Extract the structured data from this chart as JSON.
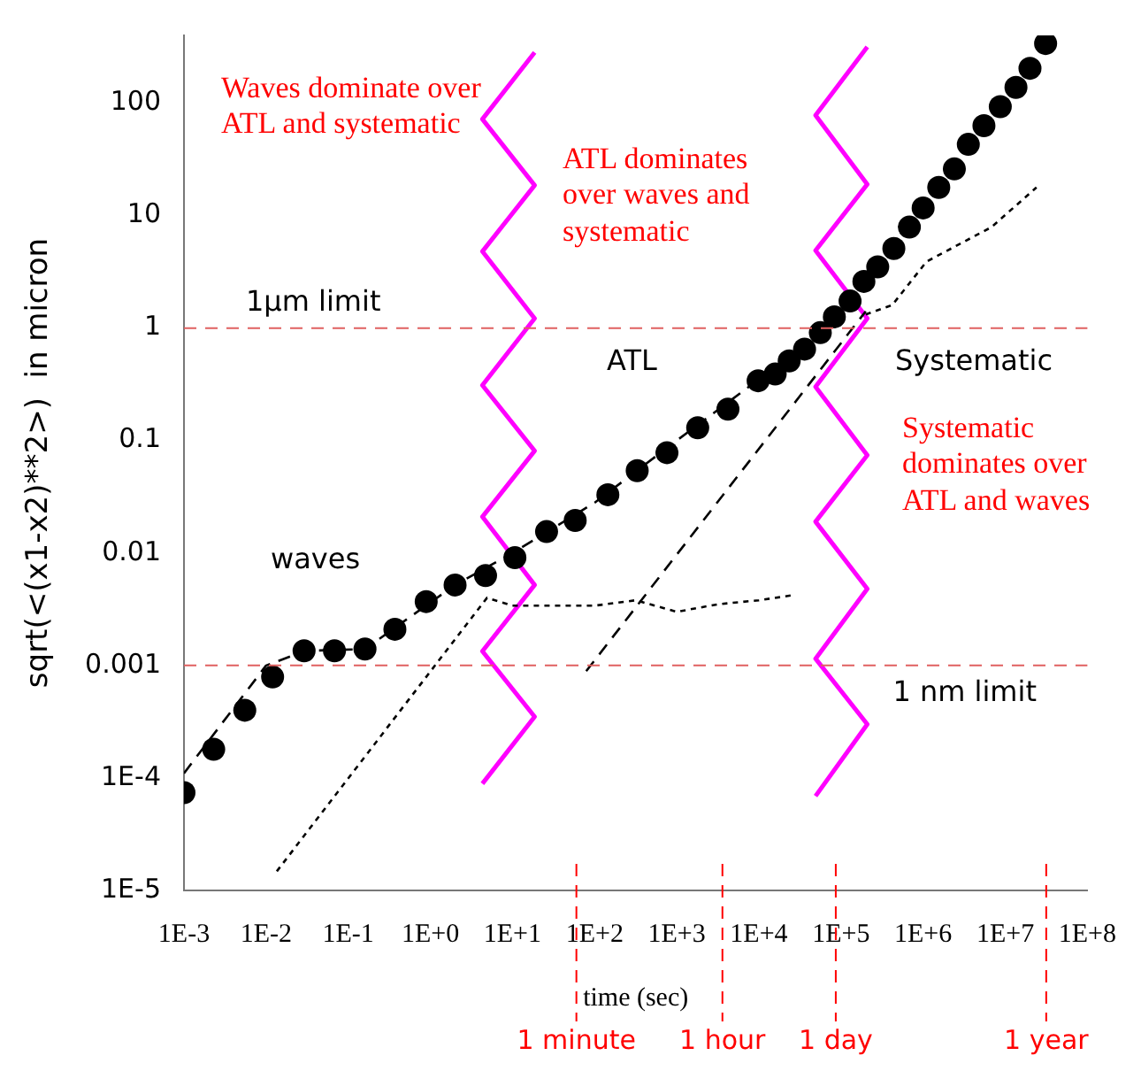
{
  "chart_data": {
    "type": "scatter",
    "xlabel": "time (sec)",
    "ylabel": "sqrt(<(x1-x2)**2>)  in micron",
    "log": "xy",
    "xlim": [
      0.001,
      100000000
    ],
    "ylim": [
      1e-05,
      400
    ],
    "xticks": [
      {
        "value": 0.001,
        "label": "1E-3"
      },
      {
        "value": 0.01,
        "label": "1E-2"
      },
      {
        "value": 0.1,
        "label": "1E-1"
      },
      {
        "value": 1,
        "label": "1E+0"
      },
      {
        "value": 10,
        "label": "1E+1"
      },
      {
        "value": 100,
        "label": "1E+2"
      },
      {
        "value": 1000,
        "label": "1E+3"
      },
      {
        "value": 10000,
        "label": "1E+4"
      },
      {
        "value": 100000,
        "label": "1E+5"
      },
      {
        "value": 1000000,
        "label": "1E+6"
      },
      {
        "value": 10000000,
        "label": "1E+7"
      },
      {
        "value": 100000000,
        "label": "1E+8"
      }
    ],
    "yticks": [
      {
        "value": 1e-05,
        "label": "1E-5"
      },
      {
        "value": 0.0001,
        "label": "1E-4"
      },
      0.001,
      0.01,
      0.1,
      1,
      10,
      100
    ],
    "grid": false,
    "legend": false,
    "series": [
      {
        "type": "scatter",
        "color": "#000000",
        "marker": "circle",
        "x": [
          0.001,
          0.0023,
          0.0055,
          0.012,
          0.029,
          0.068,
          0.16,
          0.37,
          0.89,
          2.0,
          4.7,
          10.7,
          26,
          58,
          145,
          330,
          760,
          1800,
          4200,
          9800,
          15800,
          23400,
          36000,
          56000,
          83000,
          129000,
          190000,
          280000,
          440000,
          680000,
          1000000,
          1550000,
          2400000,
          3550000,
          5500000,
          8700000,
          13500000,
          20000000,
          31000000
        ],
        "values": [
          7.4e-05,
          0.00018,
          0.0004,
          0.00079,
          0.00135,
          0.00135,
          0.0014,
          0.0021,
          0.0037,
          0.0052,
          0.0063,
          0.0091,
          0.0155,
          0.0195,
          0.033,
          0.054,
          0.078,
          0.13,
          0.19,
          0.34,
          0.39,
          0.51,
          0.65,
          0.91,
          1.26,
          1.74,
          2.6,
          3.5,
          5.1,
          7.9,
          11.7,
          17.8,
          26,
          43,
          63,
          93,
          138,
          204,
          339
        ]
      },
      {
        "type": "line",
        "color": "#000000",
        "marker": "none",
        "line_style": "dashed",
        "x": [
          0.001,
          0.01,
          0.03,
          0.16,
          2.0,
          10,
          100,
          1000,
          10000,
          100000
        ],
        "values": [
          0.00011,
          0.001,
          0.00135,
          0.0014,
          0.0052,
          0.01,
          0.028,
          0.1,
          0.35,
          1.12
        ]
      },
      {
        "type": "line",
        "color": "#000000",
        "marker": "none",
        "line_style": "dashed",
        "x": [
          79,
          200000
        ],
        "values": [
          0.00089,
          1.41
        ]
      },
      {
        "type": "line",
        "color": "#000000",
        "marker": "none",
        "line_style": "dotted",
        "x": [
          0.0135,
          4.9,
          10,
          100,
          316,
          1000,
          3160,
          10000,
          25000
        ],
        "values": [
          1.48e-05,
          0.004,
          0.0034,
          0.0034,
          0.0038,
          0.003,
          0.0035,
          0.0038,
          0.0042
        ]
      },
      {
        "type": "line",
        "color": "#000000",
        "marker": "none",
        "line_style": "dotted",
        "x": [
          200000,
          420000,
          1100000,
          6800000,
          24000000
        ],
        "values": [
          1.32,
          1.6,
          3.9,
          7.9,
          17.8
        ]
      },
      {
        "type": "line",
        "color": "#ff00ff",
        "marker": "none",
        "line_style": "solid",
        "x": [
          18.6,
          4.3,
          18.6,
          4.3,
          18.6,
          4.3,
          18.6,
          4.3,
          18.6,
          4.3,
          18.6,
          4.3
        ],
        "values": [
          282,
          72,
          18.6,
          4.8,
          1.22,
          0.31,
          0.081,
          0.021,
          0.0052,
          0.00134,
          0.00035,
          8.9e-05
        ]
      },
      {
        "type": "line",
        "color": "#ff00ff",
        "marker": "none",
        "line_style": "solid",
        "x": [
          209000,
          49000,
          209000,
          49000,
          209000,
          49000,
          209000,
          49000,
          209000,
          49000,
          209000,
          49000
        ],
        "values": [
          316,
          78,
          19,
          4.9,
          1.22,
          0.3,
          0.074,
          0.019,
          0.0048,
          0.00115,
          0.0003,
          6.9e-05
        ]
      }
    ],
    "ref_lines": [
      {
        "axis": "y",
        "value": 1,
        "label": "1µm limit",
        "color": "#e06060",
        "line_style": "dashed"
      },
      {
        "axis": "y",
        "value": 0.001,
        "label": "1 nm limit",
        "color": "#e06060",
        "line_style": "dashed"
      },
      {
        "axis": "x",
        "value": 60,
        "label": "1 minute",
        "color": "#ff0000",
        "line_style": "dashed"
      },
      {
        "axis": "x",
        "value": 3600,
        "label": "1 hour",
        "color": "#ff0000",
        "line_style": "dashed"
      },
      {
        "axis": "x",
        "value": 86400,
        "label": "1 day",
        "color": "#ff0000",
        "line_style": "dashed"
      },
      {
        "axis": "x",
        "value": 31536000,
        "label": "1 year",
        "color": "#ff0000",
        "line_style": "dashed"
      }
    ],
    "annotations": [
      "Waves dominate over ATL and systematic",
      "ATL dominates over waves and systematic",
      "Systematic dominates over ATL and waves",
      "waves",
      "ATL",
      "Systematic"
    ]
  }
}
